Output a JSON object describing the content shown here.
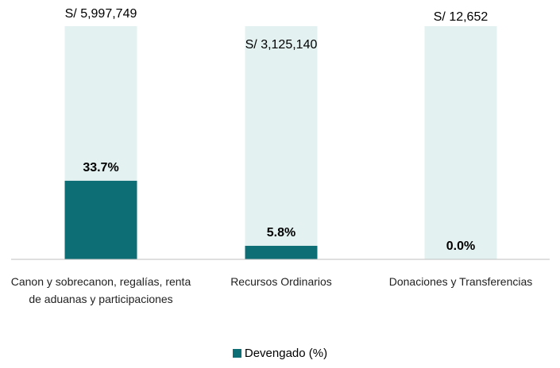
{
  "chart_data": {
    "type": "bar",
    "categories": [
      "Canon y sobrecanon, regalías, renta de aduanas y participaciones",
      "Recursos Ordinarios",
      "Donaciones y Transferencias"
    ],
    "series": [
      {
        "name": "Devengado (%)",
        "color": "#0e6e76",
        "values": [
          33.7,
          5.8,
          0.0
        ],
        "value_labels": [
          "33.7%",
          "5.8%",
          "0.0%"
        ]
      }
    ],
    "budgets": [
      5997749,
      3125140,
      12652
    ],
    "budget_labels": [
      "S/ 5,997,749",
      "S/ 3,125,140",
      "S/ 12,652"
    ],
    "track_color": "#e3f1f1",
    "ylim": [
      0,
      100
    ],
    "legend": "bottom"
  }
}
